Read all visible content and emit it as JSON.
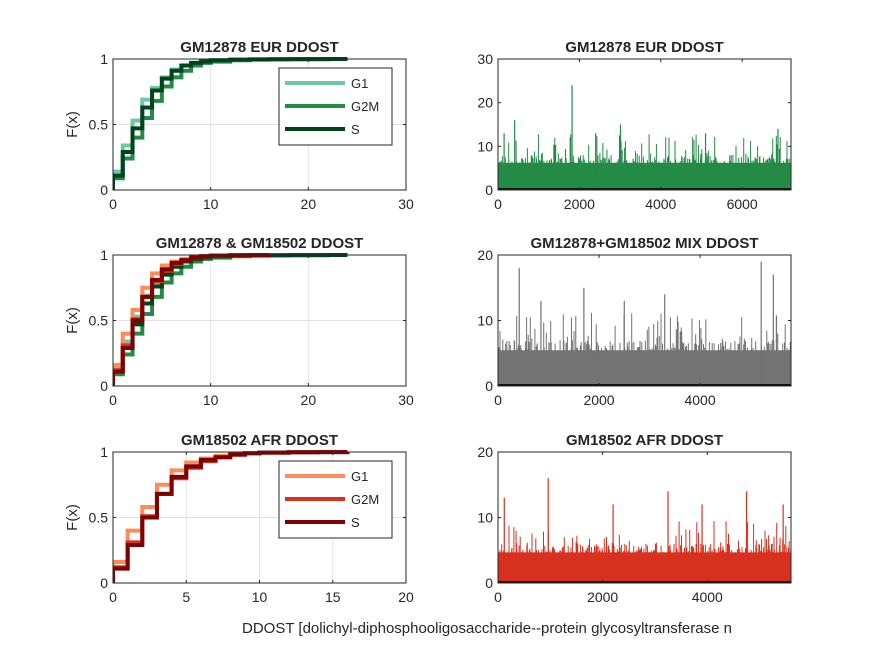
{
  "figure": {
    "xlabel": "DDOST [dolichyl-diphosphooligosaccharide--protein glycosyltransferase n"
  },
  "chart_data": [
    {
      "type": "line",
      "step": true,
      "title": "GM12878 EUR DDOST",
      "ylabel": "F(x)",
      "xlim": [
        0,
        30
      ],
      "ylim": [
        0,
        1
      ],
      "xticks": [
        "0",
        "10",
        "20",
        "30"
      ],
      "yticks": [
        "0",
        "0.5",
        "1"
      ],
      "grid": true,
      "legend": "top-right",
      "series": [
        {
          "name": "G1",
          "color": "#6cc8a8",
          "x": [
            0,
            1,
            2,
            3,
            4,
            5,
            6,
            7,
            8,
            9,
            10,
            12,
            14,
            16,
            18,
            20,
            22,
            24
          ],
          "y": [
            0.14,
            0.34,
            0.53,
            0.69,
            0.78,
            0.86,
            0.92,
            0.95,
            0.97,
            0.98,
            0.99,
            0.995,
            0.997,
            0.998,
            0.999,
            0.999,
            1.0,
            1.0
          ]
        },
        {
          "name": "G2M",
          "color": "#238b45",
          "x": [
            0,
            1,
            2,
            3,
            4,
            5,
            6,
            7,
            8,
            9,
            10,
            12,
            14,
            16,
            18,
            20,
            22,
            24
          ],
          "y": [
            0.09,
            0.24,
            0.4,
            0.55,
            0.68,
            0.79,
            0.86,
            0.91,
            0.95,
            0.97,
            0.98,
            0.99,
            0.995,
            0.997,
            0.998,
            0.999,
            1.0,
            1.0
          ]
        },
        {
          "name": "S",
          "color": "#00441b",
          "x": [
            0,
            1,
            2,
            3,
            4,
            5,
            6,
            7,
            8,
            9,
            10,
            12,
            14,
            16,
            18,
            20,
            22,
            24
          ],
          "y": [
            0.11,
            0.29,
            0.47,
            0.63,
            0.76,
            0.85,
            0.91,
            0.95,
            0.97,
            0.98,
            0.99,
            0.995,
            0.997,
            0.998,
            0.999,
            0.999,
            1.0,
            1.0
          ]
        }
      ]
    },
    {
      "type": "bar",
      "title": "GM12878 EUR DDOST",
      "color": "#238b45",
      "xlim": [
        0,
        7200
      ],
      "ylim": [
        0,
        30
      ],
      "xticks": [
        "0",
        "2000",
        "4000",
        "6000"
      ],
      "yticks": [
        "0",
        "10",
        "20",
        "30"
      ],
      "n": 7200,
      "base_max": 8,
      "peaks": [
        [
          1820,
          24
        ],
        [
          410,
          16
        ],
        [
          3010,
          15
        ],
        [
          6880,
          14
        ],
        [
          5100,
          13
        ],
        [
          2400,
          13
        ],
        [
          150,
          13
        ]
      ]
    },
    {
      "type": "line",
      "step": true,
      "title": "GM12878 & GM18502 DDOST",
      "ylabel": "F(x)",
      "xlim": [
        0,
        30
      ],
      "ylim": [
        0,
        1
      ],
      "xticks": [
        "0",
        "10",
        "20",
        "30"
      ],
      "yticks": [
        "0",
        "0.5",
        "1"
      ],
      "grid": true,
      "series": [
        {
          "color": "#6cc8a8",
          "x": [
            0,
            1,
            2,
            3,
            4,
            5,
            6,
            7,
            8,
            9,
            10,
            12,
            14,
            16,
            18,
            20,
            22,
            24
          ],
          "y": [
            0.14,
            0.34,
            0.53,
            0.69,
            0.78,
            0.86,
            0.92,
            0.95,
            0.97,
            0.98,
            0.99,
            0.995,
            0.997,
            0.998,
            0.999,
            0.999,
            1.0,
            1.0
          ]
        },
        {
          "color": "#238b45",
          "x": [
            0,
            1,
            2,
            3,
            4,
            5,
            6,
            7,
            8,
            9,
            10,
            12,
            14,
            16,
            18,
            20,
            22,
            24
          ],
          "y": [
            0.09,
            0.24,
            0.4,
            0.55,
            0.68,
            0.79,
            0.86,
            0.91,
            0.95,
            0.97,
            0.98,
            0.99,
            0.995,
            0.997,
            0.998,
            0.999,
            1.0,
            1.0
          ]
        },
        {
          "color": "#00441b",
          "x": [
            0,
            1,
            2,
            3,
            4,
            5,
            6,
            7,
            8,
            9,
            10,
            12,
            14,
            16,
            18,
            20,
            22,
            24
          ],
          "y": [
            0.11,
            0.29,
            0.47,
            0.63,
            0.76,
            0.85,
            0.91,
            0.95,
            0.97,
            0.98,
            0.99,
            0.995,
            0.997,
            0.998,
            0.999,
            0.999,
            1.0,
            1.0
          ]
        },
        {
          "color": "#fc8d59",
          "x": [
            0,
            1,
            2,
            3,
            4,
            5,
            6,
            7,
            8,
            9,
            10,
            12,
            14,
            16
          ],
          "y": [
            0.16,
            0.4,
            0.58,
            0.75,
            0.86,
            0.92,
            0.95,
            0.97,
            0.98,
            0.99,
            0.995,
            0.998,
            0.999,
            1.0
          ]
        },
        {
          "color": "#d7301f",
          "x": [
            0,
            1,
            2,
            3,
            4,
            5,
            6,
            7,
            8,
            9,
            10,
            12,
            14,
            16
          ],
          "y": [
            0.12,
            0.31,
            0.51,
            0.68,
            0.8,
            0.88,
            0.93,
            0.96,
            0.98,
            0.99,
            0.995,
            0.998,
            0.999,
            1.0
          ]
        },
        {
          "color": "#7f0000",
          "x": [
            0,
            1,
            2,
            3,
            4,
            5,
            6,
            7,
            8,
            9,
            10,
            12,
            14,
            16
          ],
          "y": [
            0.11,
            0.29,
            0.5,
            0.68,
            0.81,
            0.89,
            0.94,
            0.96,
            0.98,
            0.99,
            0.995,
            0.998,
            0.999,
            1.0
          ]
        }
      ]
    },
    {
      "type": "bar",
      "title": "GM12878+GM18502 MIX DDOST",
      "color": "#737373",
      "xlim": [
        0,
        5800
      ],
      "ylim": [
        0,
        20
      ],
      "xticks": [
        "0",
        "2000",
        "4000"
      ],
      "yticks": [
        "0",
        "10",
        "20"
      ],
      "n": 5800,
      "base_max": 7,
      "peaks": [
        [
          5210,
          19
        ],
        [
          420,
          18
        ],
        [
          5450,
          17
        ],
        [
          1700,
          15
        ],
        [
          3300,
          14
        ],
        [
          2500,
          13
        ],
        [
          850,
          13
        ]
      ]
    },
    {
      "type": "line",
      "step": true,
      "title": "GM18502 AFR DDOST",
      "ylabel": "F(x)",
      "xlim": [
        0,
        20
      ],
      "ylim": [
        0,
        1
      ],
      "xticks": [
        "0",
        "5",
        "10",
        "15",
        "20"
      ],
      "yticks": [
        "0",
        "0.5",
        "1"
      ],
      "grid": true,
      "legend": "top-right",
      "series": [
        {
          "name": "G1",
          "color": "#fc8d59",
          "x": [
            0,
            1,
            2,
            3,
            4,
            5,
            6,
            7,
            8,
            9,
            10,
            12,
            14,
            16
          ],
          "y": [
            0.16,
            0.4,
            0.58,
            0.75,
            0.86,
            0.92,
            0.95,
            0.97,
            0.98,
            0.99,
            0.995,
            0.998,
            0.999,
            1.0
          ]
        },
        {
          "name": "G2M",
          "color": "#d7301f",
          "x": [
            0,
            1,
            2,
            3,
            4,
            5,
            6,
            7,
            8,
            9,
            10,
            12,
            14,
            16
          ],
          "y": [
            0.12,
            0.31,
            0.51,
            0.68,
            0.8,
            0.88,
            0.93,
            0.96,
            0.98,
            0.99,
            0.995,
            0.998,
            0.999,
            1.0
          ]
        },
        {
          "name": "S",
          "color": "#7f0000",
          "x": [
            0,
            1,
            2,
            3,
            4,
            5,
            6,
            7,
            8,
            9,
            10,
            12,
            14,
            16
          ],
          "y": [
            0.11,
            0.29,
            0.5,
            0.68,
            0.81,
            0.89,
            0.94,
            0.96,
            0.98,
            0.99,
            0.995,
            0.998,
            0.999,
            1.0
          ]
        }
      ]
    },
    {
      "type": "bar",
      "title": "GM18502 AFR DDOST",
      "color": "#d7301f",
      "xlim": [
        0,
        5600
      ],
      "ylim": [
        0,
        20
      ],
      "xticks": [
        "0",
        "2000",
        "4000"
      ],
      "yticks": [
        "0",
        "10",
        "20"
      ],
      "n": 5600,
      "base_max": 6,
      "peaks": [
        [
          960,
          16
        ],
        [
          4750,
          14
        ],
        [
          3250,
          14
        ],
        [
          120,
          13
        ],
        [
          5450,
          12
        ],
        [
          2200,
          12
        ],
        [
          3900,
          12
        ]
      ]
    }
  ]
}
